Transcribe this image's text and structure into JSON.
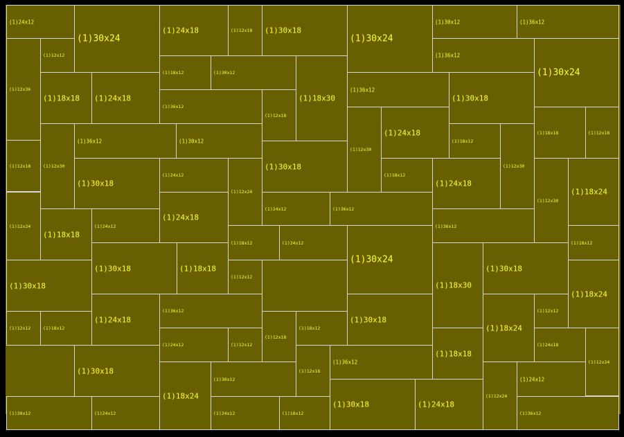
{
  "diagram": {
    "colors": {
      "background": "#000000",
      "board": "#675f00",
      "border": "#d8d8d8",
      "label": "#ffff33"
    },
    "pieces": [
      {
        "label": "(1)24x12"
      },
      {
        "label": "(1)30x24"
      },
      {
        "label": "(1)24x18"
      },
      {
        "label": "(1)12x18"
      },
      {
        "label": "(1)30x18"
      },
      {
        "label": "(1)30x24"
      },
      {
        "label": "(1)30x12"
      },
      {
        "label": "(1)36x12"
      },
      {
        "label": "(1)12x36"
      },
      {
        "label": "(1)12x12"
      },
      {
        "label": "(1)36x12"
      },
      {
        "label": "(1)30x24"
      },
      {
        "label": "(1)18x12"
      },
      {
        "label": "(1)30x12"
      },
      {
        "label": "(1)18x30"
      },
      {
        "label": "(1)18x18"
      },
      {
        "label": "(1)24x18"
      },
      {
        "label": "(1)36x12"
      },
      {
        "label": "(1)36x12"
      },
      {
        "label": "(1)30x18"
      },
      {
        "label": "(1)12x18"
      },
      {
        "label": "(1)18x18"
      },
      {
        "label": "(1)12x18"
      },
      {
        "label": "(1)12x30"
      },
      {
        "label": "(1)36x12"
      },
      {
        "label": "(1)30x12"
      },
      {
        "label": "(1)12x30"
      },
      {
        "label": "(1)24x18"
      },
      {
        "label": "(1)18x12"
      },
      {
        "label": "(1)12x18"
      },
      {
        "label": "(1)30x18"
      },
      {
        "label": "(1)24x12"
      },
      {
        "label": "(1)12x24"
      },
      {
        "label": "(1)30x18"
      },
      {
        "label": "(1)18x12"
      },
      {
        "label": "(1)24x18"
      },
      {
        "label": "(1)12x30"
      },
      {
        "label": "(1)12x30"
      },
      {
        "label": "(1)18x24"
      },
      {
        "label": "(1)12x24"
      },
      {
        "label": "(1)24x18"
      },
      {
        "label": "(1)24x12"
      },
      {
        "label": "(1)36x12"
      },
      {
        "label": "(1)18x18"
      },
      {
        "label": "(1)24x12"
      },
      {
        "label": "(1)36x12"
      },
      {
        "label": "(1)18x12"
      },
      {
        "label": "(1)24x12"
      },
      {
        "label": "(1)30x24"
      },
      {
        "label": "(1)18x12"
      },
      {
        "label": "(1)30x18"
      },
      {
        "label": "(1)18x18"
      },
      {
        "label": "(1)18x30"
      },
      {
        "label": "(1)30x18"
      },
      {
        "label": "(1)30x18"
      },
      {
        "label": "(1)12x12"
      },
      {
        "label": "(1)18x24"
      },
      {
        "label": "(1)36x12"
      },
      {
        "label": "(1)24x18"
      },
      {
        "label": "(1)12x12"
      },
      {
        "label": "(1)12x18"
      },
      {
        "label": "(1)18x12"
      },
      {
        "label": "(1)30x18"
      },
      {
        "label": "(1)18x24"
      },
      {
        "label": "(1)12x12"
      },
      {
        "label": "(1)24x12"
      },
      {
        "label": "(1)12x12"
      },
      {
        "label": "(1)18x12"
      },
      {
        "label": "(1)18x18"
      },
      {
        "label": "(1)12x24"
      },
      {
        "label": "(1)24x18"
      },
      {
        "label": "(1)30x18"
      },
      {
        "label": "(1)12x18"
      },
      {
        "label": "(1)36x12"
      },
      {
        "label": "(1)18x24"
      },
      {
        "label": "(1)30x12"
      },
      {
        "label": "(1)24x12"
      },
      {
        "label": "(1)12x24"
      },
      {
        "label": "(1)30x18"
      },
      {
        "label": "(1)24x18"
      },
      {
        "label": "(1)30x12"
      },
      {
        "label": "(1)24x12"
      },
      {
        "label": "(1)24x12"
      },
      {
        "label": "(1)18x12"
      },
      {
        "label": "(1)36x12"
      }
    ]
  }
}
